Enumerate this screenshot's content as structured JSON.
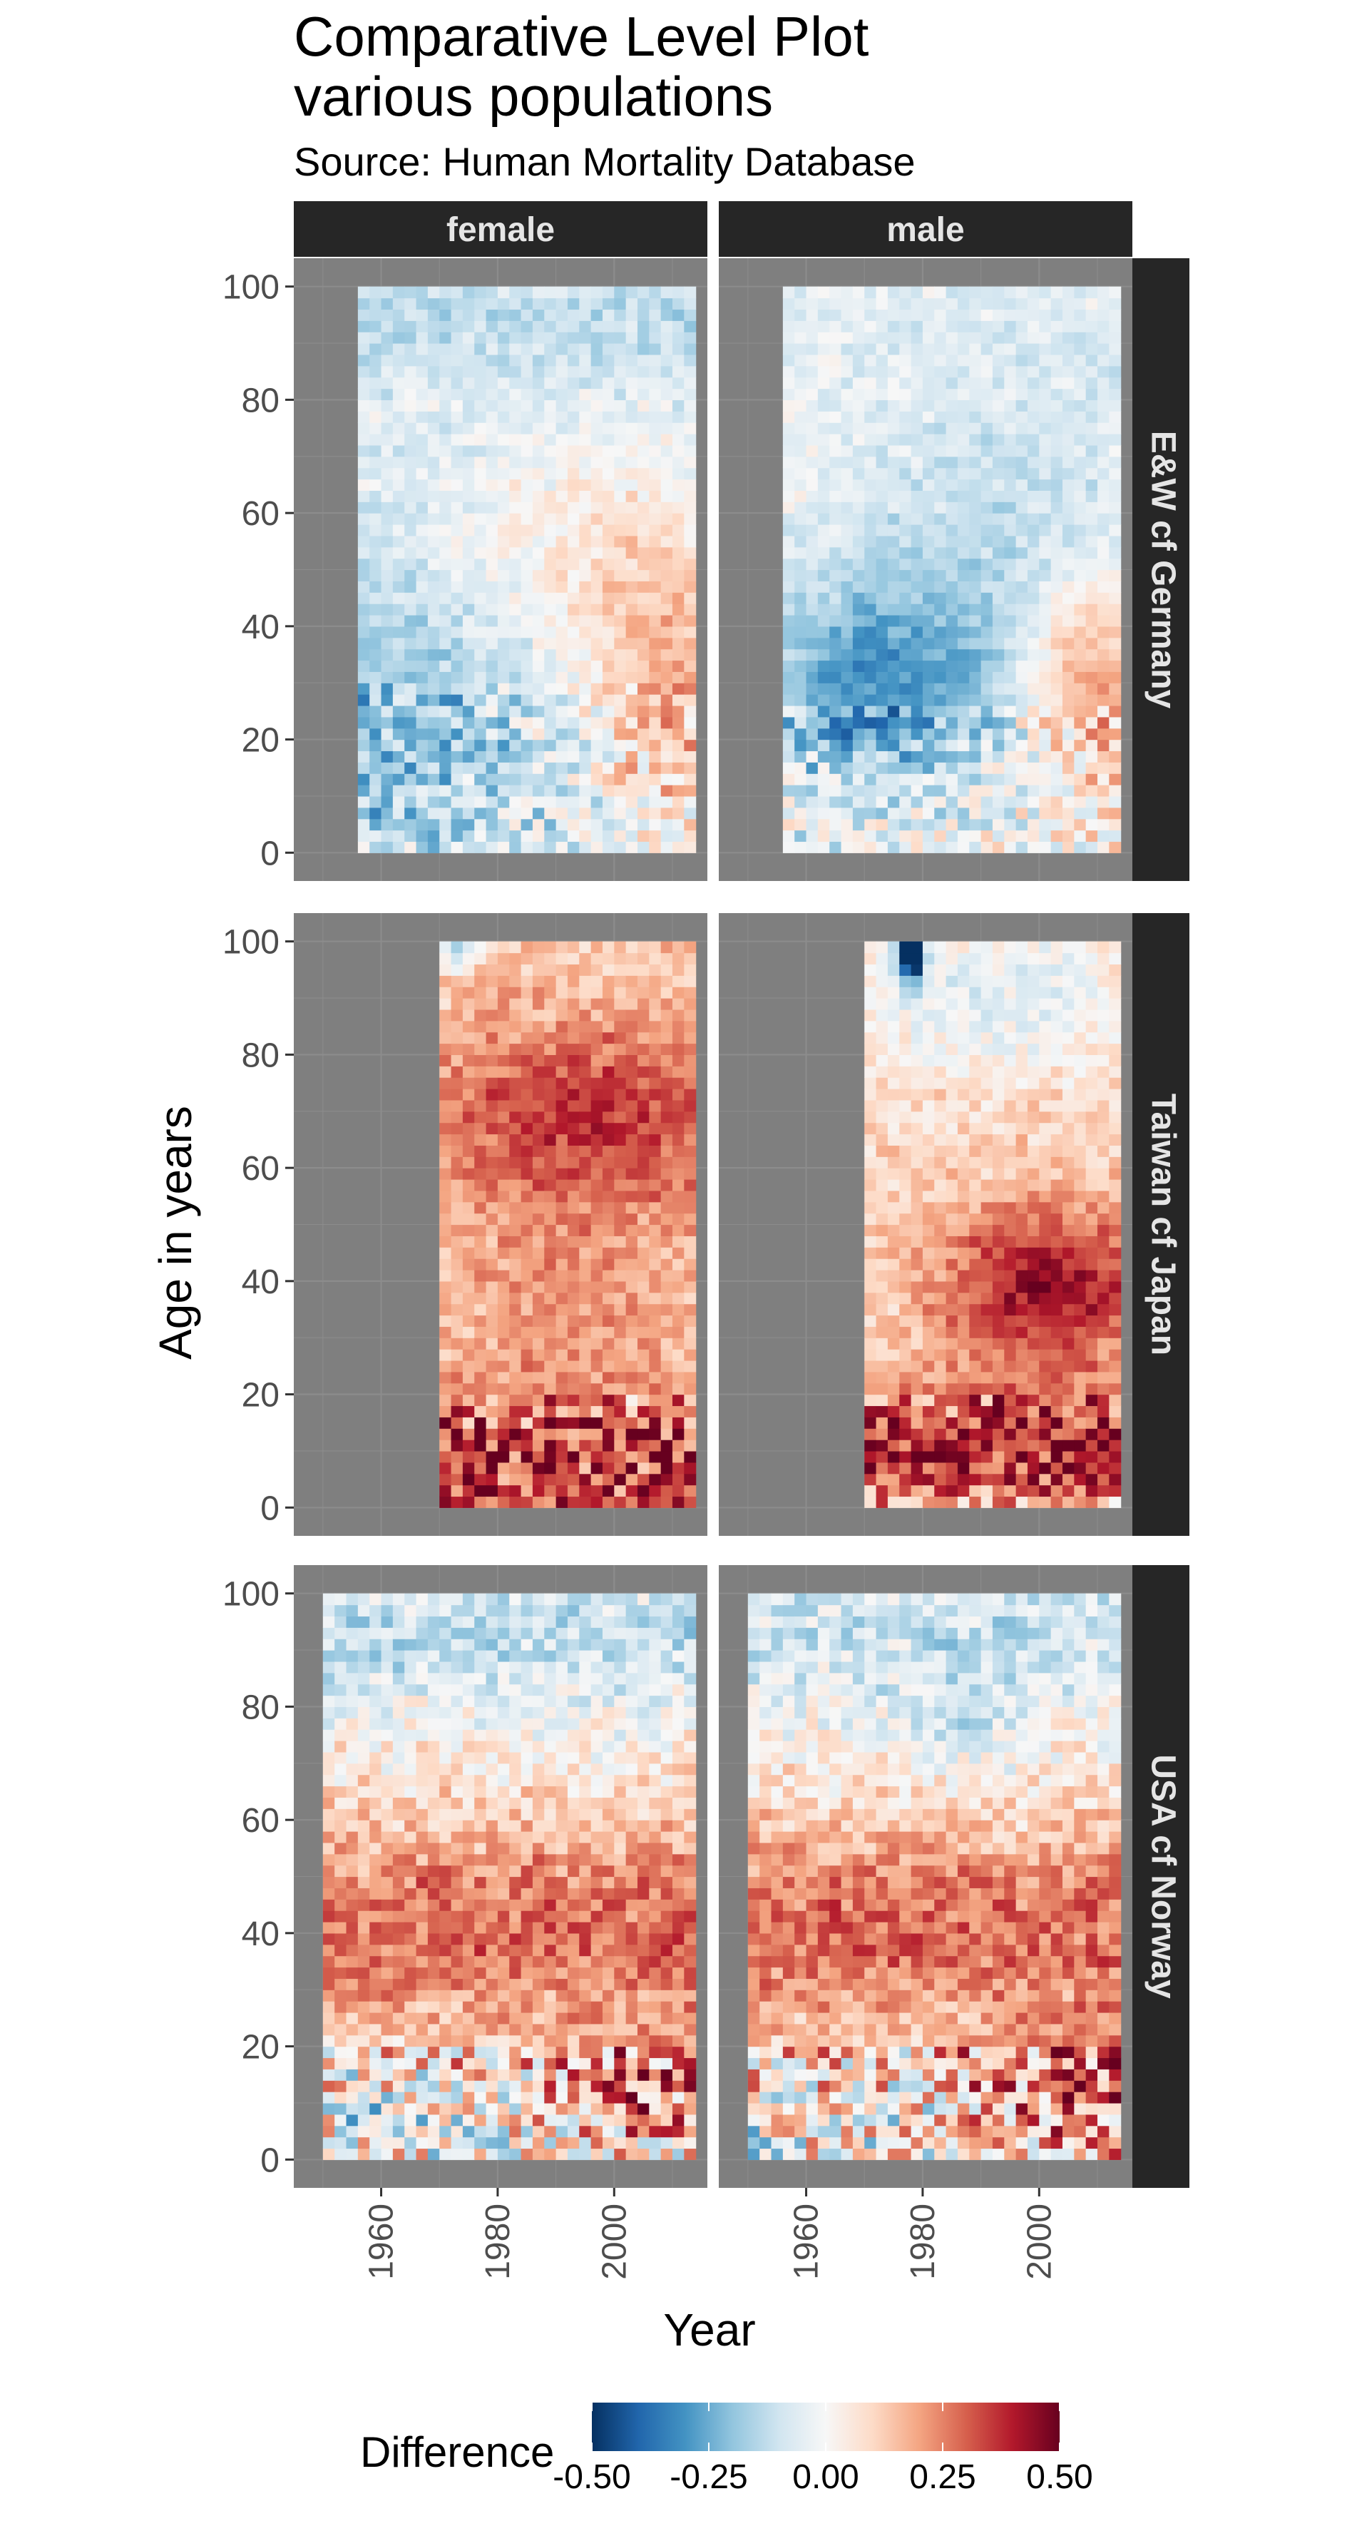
{
  "chart_data": {
    "type": "heatmap",
    "title": "Comparative Level Plot\nvarious populations",
    "subtitle": "Source: Human Mortality Database",
    "xlabel": "Year",
    "ylabel": "Age in years",
    "xlim": [
      1945,
      2016
    ],
    "ylim": [
      -5,
      105
    ],
    "x_ticks": [
      1960,
      1980,
      2000
    ],
    "y_ticks": [
      0,
      20,
      40,
      60,
      80,
      100
    ],
    "grid": true,
    "panel_background": "#7f7f7f",
    "strip_background": "#262626",
    "strip_text_color": "#e5e5e5",
    "columns": [
      "female",
      "male"
    ],
    "rows": [
      "E&W cf Germany",
      "Taiwan cf Japan",
      "USA cf Norway"
    ],
    "legend": {
      "title": "Difference",
      "position": "bottom",
      "limits": [
        -0.5,
        0.5
      ],
      "breaks": [
        -0.5,
        -0.25,
        0,
        0.25,
        0.5
      ],
      "labels": [
        "-0.50",
        "-0.25",
        "0.00",
        "0.25",
        "0.50"
      ],
      "colors": [
        "#053061",
        "#2166ac",
        "#4393c3",
        "#92c5de",
        "#d1e5f0",
        "#f7f7f7",
        "#fddbc7",
        "#f4a582",
        "#d6604d",
        "#b2182b",
        "#67001f"
      ]
    },
    "panels": [
      {
        "row": "E&W cf Germany",
        "column": "female",
        "year_range": [
          1956,
          2014
        ],
        "age_range": [
          0,
          100
        ],
        "key_values": [
          {
            "region": "ages 0-50, 1956-1975",
            "approx_difference": -0.2
          },
          {
            "region": "ages 40-60, 1995-2014",
            "approx_difference": 0.15
          },
          {
            "region": "ages 80-100",
            "approx_difference": -0.08
          }
        ]
      },
      {
        "row": "E&W cf Germany",
        "column": "male",
        "year_range": [
          1956,
          2014
        ],
        "age_range": [
          0,
          100
        ],
        "key_values": [
          {
            "region": "ages 15-45, 1960-1990",
            "approx_difference": -0.3
          },
          {
            "region": "ages 20-40, 2000-2014",
            "approx_difference": 0.15
          },
          {
            "region": "ages 80-100",
            "approx_difference": -0.05
          }
        ]
      },
      {
        "row": "Taiwan cf Japan",
        "column": "female",
        "year_range": [
          1970,
          2014
        ],
        "age_range": [
          0,
          100
        ],
        "key_values": [
          {
            "region": "ages 60-80, 1980-2014",
            "approx_difference": 0.3
          },
          {
            "region": "ages 0-20",
            "approx_difference": 0.35
          },
          {
            "region": "ages 95-100, 1970-1975",
            "approx_difference": -0.15
          }
        ]
      },
      {
        "row": "Taiwan cf Japan",
        "column": "male",
        "year_range": [
          1970,
          2014
        ],
        "age_range": [
          0,
          100
        ],
        "key_values": [
          {
            "region": "ages 25-50, 1990-2014",
            "approx_difference": 0.4
          },
          {
            "region": "ages 0-20",
            "approx_difference": 0.35
          },
          {
            "region": "ages 95-100, 1976-1978",
            "approx_difference": -0.5
          }
        ]
      },
      {
        "row": "USA cf Norway",
        "column": "female",
        "year_range": [
          1950,
          2014
        ],
        "age_range": [
          0,
          100
        ],
        "key_values": [
          {
            "region": "ages 20-60",
            "approx_difference": 0.3
          },
          {
            "region": "ages 0-20, 1990-2014",
            "approx_difference": 0.4
          },
          {
            "region": "ages 80-100",
            "approx_difference": -0.1
          }
        ]
      },
      {
        "row": "USA cf Norway",
        "column": "male",
        "year_range": [
          1950,
          2014
        ],
        "age_range": [
          0,
          100
        ],
        "key_values": [
          {
            "region": "ages 20-60",
            "approx_difference": 0.3
          },
          {
            "region": "ages 0-20, 1990-2014",
            "approx_difference": 0.45
          },
          {
            "region": "ages 80-100",
            "approx_difference": -0.1
          }
        ]
      }
    ]
  }
}
